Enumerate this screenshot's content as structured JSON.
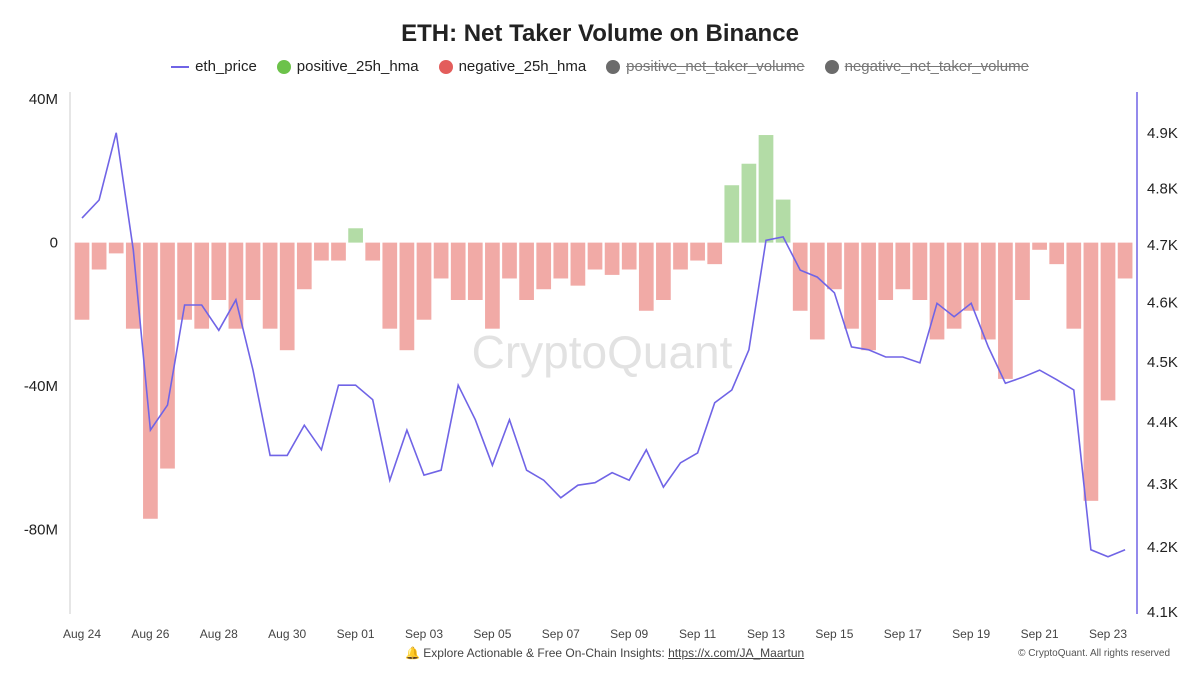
{
  "chart_data": {
    "type": "bar",
    "title": "ETH: Net Taker Volume on Binance",
    "legend": [
      {
        "name": "eth_price",
        "color": "#7064e6",
        "marker": "line",
        "visible": true
      },
      {
        "name": "positive_25h_hma",
        "color": "#6cc24a",
        "marker": "dot",
        "visible": true
      },
      {
        "name": "negative_25h_hma",
        "color": "#e35d5b",
        "marker": "dot",
        "visible": true
      },
      {
        "name": "positive_net_taker_volume",
        "color": "#6b6b6b",
        "marker": "dot",
        "visible": false
      },
      {
        "name": "negative_net_taker_volume",
        "color": "#6b6b6b",
        "marker": "dot",
        "visible": false
      }
    ],
    "legend_placement": "top",
    "bar_colors": {
      "positive": "#b3dca6",
      "negative": "#f1aaa6"
    },
    "x_ticks": [
      "Aug 24",
      "Aug 26",
      "Aug 28",
      "Aug 30",
      "Sep 01",
      "Sep 03",
      "Sep 05",
      "Sep 07",
      "Sep 09",
      "Sep 11",
      "Sep 13",
      "Sep 15",
      "Sep 17",
      "Sep 19",
      "Sep 21",
      "Sep 23"
    ],
    "x_tick_dates": [
      "2025-08-24",
      "2025-08-26",
      "2025-08-28",
      "2025-08-30",
      "2025-09-01",
      "2025-09-03",
      "2025-09-05",
      "2025-09-07",
      "2025-09-09",
      "2025-09-11",
      "2025-09-13",
      "2025-09-15",
      "2025-09-17",
      "2025-09-19",
      "2025-09-21",
      "2025-09-23"
    ],
    "y_left": {
      "ticks": [
        "40M",
        "0",
        "-40M",
        "-80M"
      ],
      "tick_values": [
        40,
        0,
        -40,
        -80
      ],
      "unit": "M",
      "range": [
        -103,
        42
      ]
    },
    "y_right": {
      "ticks": [
        "4.9K",
        "4.8K",
        "4.7K",
        "4.6K",
        "4.5K",
        "4.4K",
        "4.3K",
        "4.2K",
        "4.1K"
      ],
      "tick_values": [
        4900,
        4800,
        4700,
        4600,
        4500,
        4400,
        4300,
        4200,
        4100
      ],
      "scale": "log",
      "range": [
        4100,
        4975
      ]
    },
    "grid": false,
    "x": [
      "2025-08-24T00",
      "2025-08-24T12",
      "2025-08-25T00",
      "2025-08-25T12",
      "2025-08-26T00",
      "2025-08-26T12",
      "2025-08-27T00",
      "2025-08-27T12",
      "2025-08-28T00",
      "2025-08-28T12",
      "2025-08-29T00",
      "2025-08-29T12",
      "2025-08-30T00",
      "2025-08-30T12",
      "2025-08-31T00",
      "2025-08-31T12",
      "2025-09-01T00",
      "2025-09-01T12",
      "2025-09-02T00",
      "2025-09-02T12",
      "2025-09-03T00",
      "2025-09-03T12",
      "2025-09-04T00",
      "2025-09-04T12",
      "2025-09-05T00",
      "2025-09-05T12",
      "2025-09-06T00",
      "2025-09-06T12",
      "2025-09-07T00",
      "2025-09-07T12",
      "2025-09-08T00",
      "2025-09-08T12",
      "2025-09-09T00",
      "2025-09-09T12",
      "2025-09-10T00",
      "2025-09-10T12",
      "2025-09-11T00",
      "2025-09-11T12",
      "2025-09-12T00",
      "2025-09-12T12",
      "2025-09-13T00",
      "2025-09-13T12",
      "2025-09-14T00",
      "2025-09-14T12",
      "2025-09-15T00",
      "2025-09-15T12",
      "2025-09-16T00",
      "2025-09-16T12",
      "2025-09-17T00",
      "2025-09-17T12",
      "2025-09-18T00",
      "2025-09-18T12",
      "2025-09-19T00",
      "2025-09-19T12",
      "2025-09-20T00",
      "2025-09-20T12",
      "2025-09-21T00",
      "2025-09-21T12",
      "2025-09-22T00",
      "2025-09-22T12",
      "2025-09-23T00",
      "2025-09-23T12"
    ],
    "series": [
      {
        "name": "eth_price",
        "axis": "right",
        "type": "line",
        "values": [
          4747,
          4779,
          4900,
          4691,
          4387,
          4428,
          4596,
          4596,
          4553,
          4605,
          4486,
          4346,
          4346,
          4395,
          4355,
          4461,
          4461,
          4437,
          4306,
          4387,
          4314,
          4322,
          4461,
          4404,
          4330,
          4404,
          4322,
          4306,
          4278,
          4298,
          4302,
          4318,
          4306,
          4355,
          4295,
          4334,
          4350,
          4432,
          4453,
          4520,
          4708,
          4714,
          4656,
          4644,
          4617,
          4525,
          4520,
          4508,
          4508,
          4498,
          4599,
          4576,
          4599,
          4525,
          4464,
          4474,
          4486,
          4470,
          4453,
          4196,
          4185,
          4196
        ]
      },
      {
        "axis": "left",
        "type": "bar",
        "unit": "M",
        "values": [
          -21.5,
          -7.5,
          -3,
          -24,
          -77,
          -63,
          -21.5,
          -24,
          -16,
          -24,
          -16,
          -24,
          -30,
          -13,
          -5,
          -5,
          4,
          -5,
          -24,
          -30,
          -21.5,
          -10,
          -16,
          -16,
          -24,
          -10,
          -16,
          -13,
          -10,
          -12,
          -7.5,
          -9,
          -7.5,
          -19,
          -16,
          -7.5,
          -5,
          -6,
          16,
          22,
          30,
          12,
          -19,
          -27,
          -13,
          -24,
          -30,
          -16,
          -13,
          -16,
          -27,
          -24,
          -19,
          -27,
          -38,
          -16,
          -2,
          -6,
          -24,
          -72,
          -44,
          -10
        ]
      }
    ]
  },
  "watermark": "CryptoQuant",
  "footer": {
    "icon": "bell-icon",
    "text": "Explore Actionable & Free On-Chain Insights:",
    "link": "https://x.com/JA_Maartun",
    "copyright": "© CryptoQuant. All rights reserved"
  }
}
